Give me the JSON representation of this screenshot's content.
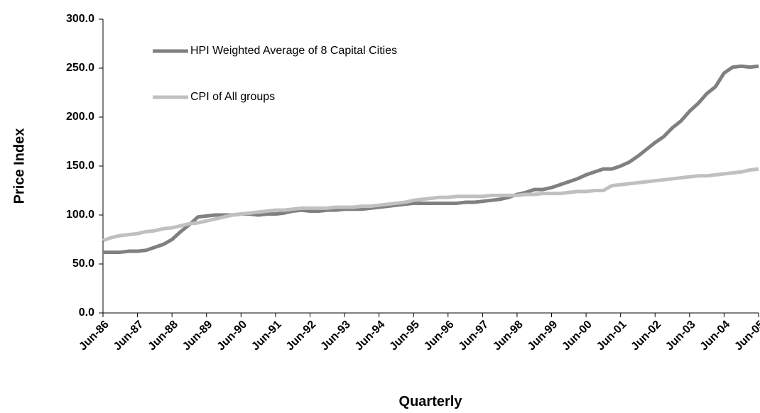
{
  "chart_data": {
    "type": "line",
    "ylabel": "Price Index",
    "xlabel": "Quarterly",
    "categories": [
      "Jun-86",
      null,
      null,
      null,
      "Jun-87",
      null,
      null,
      null,
      "Jun-88",
      null,
      null,
      null,
      "Jun-89",
      null,
      null,
      null,
      "Jun-90",
      null,
      null,
      null,
      "Jun-91",
      null,
      null,
      null,
      "Jun-92",
      null,
      null,
      null,
      "Jun-93",
      null,
      null,
      null,
      "Jun-94",
      null,
      null,
      null,
      "Jun-95",
      null,
      null,
      null,
      "Jun-96",
      null,
      null,
      null,
      "Jun-97",
      null,
      null,
      null,
      "Jun-98",
      null,
      null,
      null,
      "Jun-99",
      null,
      null,
      null,
      "Jun-00",
      null,
      null,
      null,
      "Jun-01",
      null,
      null,
      null,
      "Jun-02",
      null,
      null,
      null,
      "Jun-03",
      null,
      null,
      null,
      "Jun-04",
      null,
      null,
      null,
      "Jun-05"
    ],
    "series": [
      {
        "name": "HPI Weighted Average of 8 Capital Cities",
        "color": "#808080",
        "values": [
          62,
          62,
          62,
          63,
          63,
          64,
          67,
          70,
          75,
          83,
          90,
          98,
          99,
          100,
          100,
          100,
          101,
          101,
          100,
          101,
          101,
          102,
          104,
          105,
          104,
          104,
          105,
          105,
          106,
          106,
          106,
          107,
          108,
          109,
          110,
          111,
          112,
          112,
          112,
          112,
          112,
          112,
          113,
          113,
          114,
          115,
          116,
          118,
          121,
          123,
          126,
          126,
          128,
          131,
          134,
          137,
          141,
          144,
          147,
          147,
          150,
          154,
          160,
          167,
          174,
          180,
          189,
          196,
          206,
          214,
          224,
          231,
          245,
          251,
          252,
          251,
          252
        ]
      },
      {
        "name": "CPI of All groups",
        "color": "#c0c0c0",
        "values": [
          74,
          77,
          79,
          80,
          81,
          83,
          84,
          86,
          87,
          89,
          91,
          92,
          94,
          96,
          98,
          100,
          101,
          102,
          103,
          104,
          105,
          105,
          106,
          107,
          107,
          107,
          107,
          108,
          108,
          108,
          109,
          109,
          110,
          111,
          112,
          113,
          115,
          116,
          117,
          118,
          118,
          119,
          119,
          119,
          119,
          120,
          120,
          120,
          120,
          121,
          121,
          122,
          122,
          122,
          123,
          124,
          124,
          125,
          125,
          130,
          131,
          132,
          133,
          134,
          135,
          136,
          137,
          138,
          139,
          140,
          140,
          141,
          142,
          143,
          144,
          146,
          147
        ]
      }
    ],
    "ylim": [
      0,
      300
    ],
    "yticks": [
      {
        "value": 0,
        "label": "0.0"
      },
      {
        "value": 50,
        "label": "50.0"
      },
      {
        "value": 100,
        "label": "100.0"
      },
      {
        "value": 150,
        "label": "150.0"
      },
      {
        "value": 200,
        "label": "200.0"
      },
      {
        "value": 250,
        "label": "250.0"
      },
      {
        "value": 300,
        "label": "300.0"
      }
    ],
    "legend": "upper-left"
  }
}
